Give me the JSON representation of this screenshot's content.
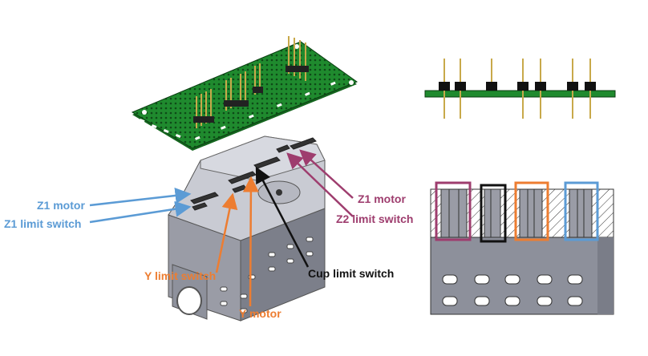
{
  "colors": {
    "blue": "#5b9bd5",
    "orange": "#ed7d31",
    "magenta": "#9e3d6e",
    "black": "#111111",
    "pcb": "#1f8a2e",
    "housing": "#8d909b"
  },
  "labels": {
    "z1_motor_left": "Z1 motor",
    "z1_limit_switch": "Z1 limit switch",
    "y_limit_switch": "Y limit switch",
    "y_motor": "Y motor",
    "cup_limit_switch": "Cup limit switch",
    "z1_motor_right": "Z1 motor",
    "z2_limit_switch": "Z2 limit switch"
  }
}
